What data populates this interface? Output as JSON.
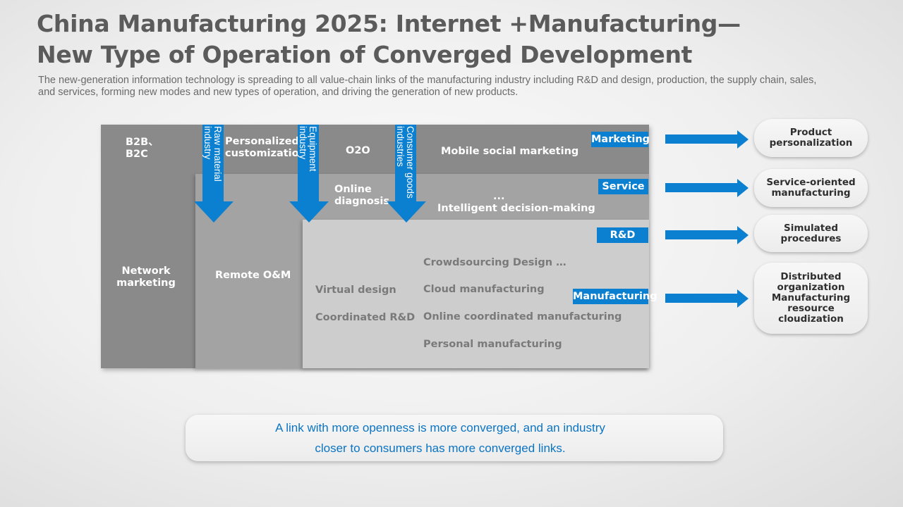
{
  "title": "China Manufacturing 2025: Internet +Manufacturing—\nNew Type of Operation of Converged Development",
  "subtitle": "The new-generation information technology is spreading to all value-chain links of the manufacturing industry including R&D and design, production, the supply chain, sales, and services, forming new modes and new types of operation, and driving the generation of new products.",
  "layers": {
    "marketing": {
      "tag": "Marketing",
      "items": {
        "b2b": "B2B、\nB2C",
        "personalized": "Personalized\ncustomization",
        "o2o": "O2O",
        "mobile": "Mobile social marketing",
        "network": "Network\nmarketing"
      }
    },
    "service": {
      "tag": "Service",
      "items": {
        "online_diagnosis": "Online\ndiagnosis",
        "ellipsis": "...",
        "intelligent": "Intelligent decision-making",
        "remote": "Remote O&M"
      }
    },
    "rd": {
      "tag": "R&D",
      "items": {
        "virtual": "Virtual design",
        "coordinated_rd": "Coordinated R&D"
      }
    },
    "manufacturing": {
      "tag": "Manufacturing",
      "items": {
        "crowdsourcing": "Crowdsourcing Design …",
        "cloud": "Cloud manufacturing",
        "online_coord": "Online coordinated manufacturing",
        "personal": "Personal manufacturing"
      }
    }
  },
  "industries": [
    "Raw material\nindustry",
    "Equipment\nindustry",
    "Consumer goods\nindustries"
  ],
  "outcomes": [
    "Product\npersonalization",
    "Service-oriented\nmanufacturing",
    "Simulated\nprocedures",
    "Distributed\norganization\nManufacturing\nresource\ncloudization"
  ],
  "conclusion": "A link with more openness is more converged, and an industry\ncloser to consumers has more converged links.",
  "colors": {
    "accent": "#0b7fd0",
    "conclusion_text": "#0b74c2",
    "title": "#5b5b5b"
  }
}
